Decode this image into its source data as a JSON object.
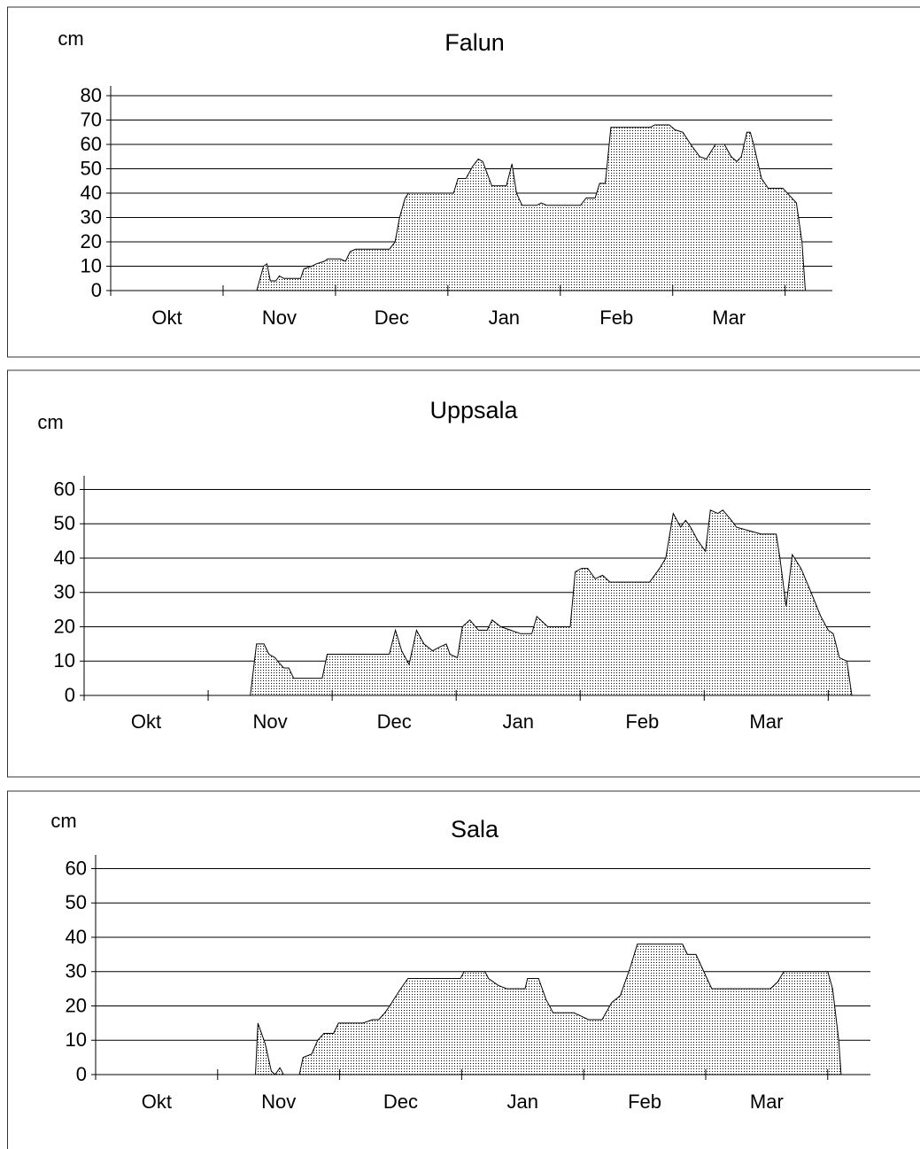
{
  "chart_data": [
    {
      "type": "area",
      "title": "Falun",
      "y_label": "cm",
      "categories": [
        "Okt",
        "Nov",
        "Dec",
        "Jan",
        "Feb",
        "Mar"
      ],
      "x": [
        1.3,
        1.36,
        1.39,
        1.42,
        1.47,
        1.5,
        1.54,
        1.69,
        1.72,
        1.79,
        1.83,
        1.9,
        1.93,
        2.04,
        2.09,
        2.13,
        2.18,
        2.48,
        2.53,
        2.57,
        2.62,
        2.65,
        3.05,
        3.09,
        3.16,
        3.22,
        3.27,
        3.31,
        3.39,
        3.52,
        3.57,
        3.61,
        3.66,
        3.79,
        3.83,
        3.88,
        4.18,
        4.23,
        4.31,
        4.35,
        4.4,
        4.45,
        4.8,
        4.84,
        4.97,
        5.02,
        5.09,
        5.16,
        5.24,
        5.3,
        5.38,
        5.46,
        5.52,
        5.57,
        5.61,
        5.66,
        5.69,
        5.72,
        5.79,
        5.85,
        5.98,
        6.04,
        6.1,
        6.15,
        6.18
      ],
      "values": [
        0,
        10,
        11,
        4,
        4,
        6,
        5,
        5,
        9,
        10,
        11,
        12,
        13,
        13,
        12,
        16,
        17,
        17,
        20,
        30,
        38,
        40,
        40,
        46,
        46,
        51,
        54,
        53,
        43,
        43,
        52,
        40,
        35,
        35,
        36,
        35,
        35,
        38,
        38,
        44,
        44,
        67,
        67,
        68,
        68,
        66,
        65,
        60,
        55,
        54,
        60,
        60,
        55,
        53,
        55,
        65,
        65,
        60,
        46,
        42,
        42,
        39,
        36,
        20,
        0
      ],
      "xlim": [
        0,
        6.42
      ],
      "ylim": [
        0,
        84
      ],
      "yticks": [
        0,
        10,
        20,
        30,
        40,
        50,
        60,
        70,
        80
      ],
      "grid": true
    },
    {
      "type": "area",
      "title": "Uppsala",
      "y_label": "cm",
      "categories": [
        "Okt",
        "Nov",
        "Dec",
        "Jan",
        "Feb",
        "Mar"
      ],
      "x": [
        1.34,
        1.39,
        1.45,
        1.49,
        1.54,
        1.56,
        1.61,
        1.65,
        1.69,
        1.92,
        1.96,
        2.46,
        2.51,
        2.56,
        2.62,
        2.68,
        2.74,
        2.81,
        2.86,
        2.92,
        2.95,
        3.01,
        3.05,
        3.11,
        3.18,
        3.25,
        3.29,
        3.36,
        3.44,
        3.52,
        3.61,
        3.65,
        3.74,
        3.92,
        3.96,
        4.01,
        4.06,
        4.12,
        4.18,
        4.24,
        4.31,
        4.36,
        4.48,
        4.56,
        4.64,
        4.69,
        4.75,
        4.81,
        4.85,
        4.89,
        4.95,
        5.01,
        5.05,
        5.11,
        5.15,
        5.22,
        5.26,
        5.36,
        5.46,
        5.58,
        5.61,
        5.66,
        5.71,
        5.78,
        5.85,
        5.94,
        6.0,
        6.04,
        6.09,
        6.15,
        6.19
      ],
      "values": [
        0,
        15,
        15,
        12,
        11,
        10,
        8,
        8,
        5,
        5,
        12,
        12,
        19,
        13,
        9,
        19,
        15,
        13,
        14,
        15,
        12,
        11,
        20,
        22,
        19,
        19,
        22,
        20,
        19,
        18,
        18,
        23,
        20,
        20,
        36,
        37,
        37,
        34,
        35,
        33,
        33,
        33,
        33,
        33,
        37,
        40,
        53,
        49,
        51,
        49,
        45,
        42,
        54,
        53,
        54,
        51,
        49,
        48,
        47,
        47,
        40,
        26,
        41,
        37,
        31,
        23,
        19,
        18,
        11,
        10,
        0
      ],
      "xlim": [
        0,
        6.34
      ],
      "ylim": [
        0,
        64
      ],
      "yticks": [
        0,
        10,
        20,
        30,
        40,
        50,
        60
      ],
      "grid": true
    },
    {
      "type": "area",
      "title": "Sala",
      "y_label": "cm",
      "categories": [
        "Okt",
        "Nov",
        "Dec",
        "Jan",
        "Feb",
        "Mar"
      ],
      "x": [
        1.31,
        1.33,
        1.39,
        1.44,
        1.47,
        1.51,
        1.54,
        1.67,
        1.7,
        1.77,
        1.82,
        1.87,
        1.95,
        1.99,
        2.19,
        2.27,
        2.32,
        2.37,
        2.41,
        2.5,
        2.56,
        2.99,
        3.02,
        3.19,
        3.22,
        3.3,
        3.37,
        3.52,
        3.54,
        3.63,
        3.69,
        3.75,
        3.92,
        3.98,
        4.04,
        4.15,
        4.23,
        4.3,
        4.38,
        4.44,
        4.81,
        4.85,
        4.92,
        5.01,
        5.05,
        5.53,
        5.59,
        5.64,
        6.0,
        6.04,
        6.09,
        6.11
      ],
      "values": [
        0,
        15,
        9,
        1,
        0,
        2,
        0,
        0,
        5,
        6,
        10,
        12,
        12,
        15,
        15,
        16,
        16,
        18,
        20,
        25,
        28,
        28,
        30,
        30,
        28,
        26,
        25,
        25,
        28,
        28,
        22,
        18,
        18,
        17,
        16,
        16,
        21,
        23,
        31,
        38,
        38,
        35,
        35,
        28,
        25,
        25,
        27,
        30,
        30,
        25,
        10,
        0
      ],
      "xlim": [
        0,
        6.35
      ],
      "ylim": [
        0,
        64
      ],
      "yticks": [
        0,
        10,
        20,
        30,
        40,
        50,
        60
      ],
      "grid": true
    }
  ]
}
